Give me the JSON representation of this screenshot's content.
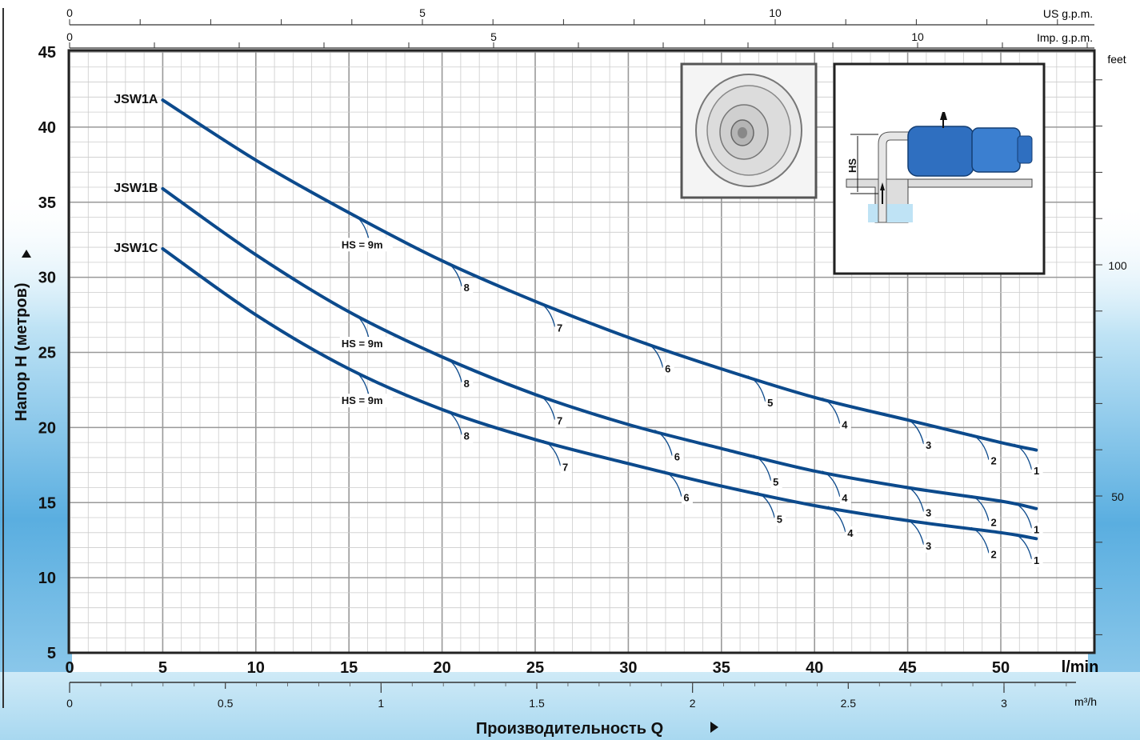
{
  "chart_data": {
    "type": "line",
    "y_axis": {
      "label": "Напор Н   (метров)",
      "ticks": [
        5,
        10,
        15,
        20,
        25,
        30,
        35,
        40,
        45
      ],
      "ylim": [
        5,
        45
      ]
    },
    "x_axis": {
      "label": "Производительность Q",
      "unit": "l/min",
      "ticks": [
        0,
        5,
        10,
        15,
        20,
        25,
        30,
        35,
        40,
        45,
        50
      ],
      "xlim": [
        0,
        55
      ]
    },
    "x_axis_m3h": {
      "unit": "m³/h",
      "ticks": [
        "0",
        "0.5",
        "1",
        "1.5",
        "2",
        "2.5",
        "3"
      ]
    },
    "x_axis_us": {
      "unit": "US g.p.m.",
      "ticks": [
        "0",
        "5",
        "10"
      ]
    },
    "x_axis_imp": {
      "unit": "Imp. g.p.m.",
      "ticks": [
        "0",
        "5",
        "10"
      ]
    },
    "y_axis_feet": {
      "unit": "feet",
      "ticks": [
        "50",
        "100"
      ]
    },
    "series": [
      {
        "name": "JSW1A",
        "x": [
          5,
          10,
          15,
          20,
          25,
          30,
          35,
          40,
          45,
          50,
          51.9
        ],
        "y": [
          41.8,
          37.8,
          34.3,
          31.1,
          28.4,
          26.0,
          23.9,
          22.0,
          20.5,
          19.0,
          18.5
        ]
      },
      {
        "name": "JSW1B",
        "x": [
          5,
          10,
          15,
          20,
          25,
          30,
          35,
          40,
          45,
          50,
          51.9
        ],
        "y": [
          35.9,
          31.5,
          27.7,
          24.7,
          22.2,
          20.2,
          18.6,
          17.1,
          16.0,
          15.1,
          14.6
        ]
      },
      {
        "name": "JSW1C",
        "x": [
          5,
          10,
          15,
          20,
          25,
          30,
          35,
          40,
          45,
          50,
          51.9
        ],
        "y": [
          31.9,
          27.5,
          23.9,
          21.2,
          19.2,
          17.6,
          16.1,
          14.8,
          13.8,
          13.0,
          12.6
        ]
      }
    ],
    "hs_markers": [
      {
        "series": "JSW1A",
        "labels": [
          "HS = 9m",
          "8",
          "7",
          "6",
          "5",
          "4",
          "3",
          "2",
          "1"
        ],
        "x": [
          15.2,
          20.2,
          25.2,
          31.0,
          36.5,
          40.5,
          45.0,
          48.5,
          50.8
        ]
      },
      {
        "series": "JSW1B",
        "labels": [
          "HS = 9m",
          "8",
          "7",
          "6",
          "5",
          "4",
          "3",
          "2",
          "1"
        ],
        "x": [
          15.2,
          20.2,
          25.2,
          31.5,
          36.8,
          40.5,
          45.0,
          48.5,
          50.8
        ]
      },
      {
        "series": "JSW1C",
        "labels": [
          "HS = 9m",
          "8",
          "7",
          "6",
          "5",
          "4",
          "3",
          "2",
          "1"
        ],
        "x": [
          15.2,
          20.2,
          25.5,
          32.0,
          37.0,
          40.8,
          45.0,
          48.5,
          50.8
        ]
      }
    ],
    "grid": true,
    "inset_left": "impeller",
    "inset_right": "pump installation diagram",
    "inset_right_label": "HS"
  },
  "colors": {
    "curve": "#0c4a8c",
    "grid_major": "#999999",
    "grid_minor": "#cccccc",
    "water": "#6fb8de"
  }
}
